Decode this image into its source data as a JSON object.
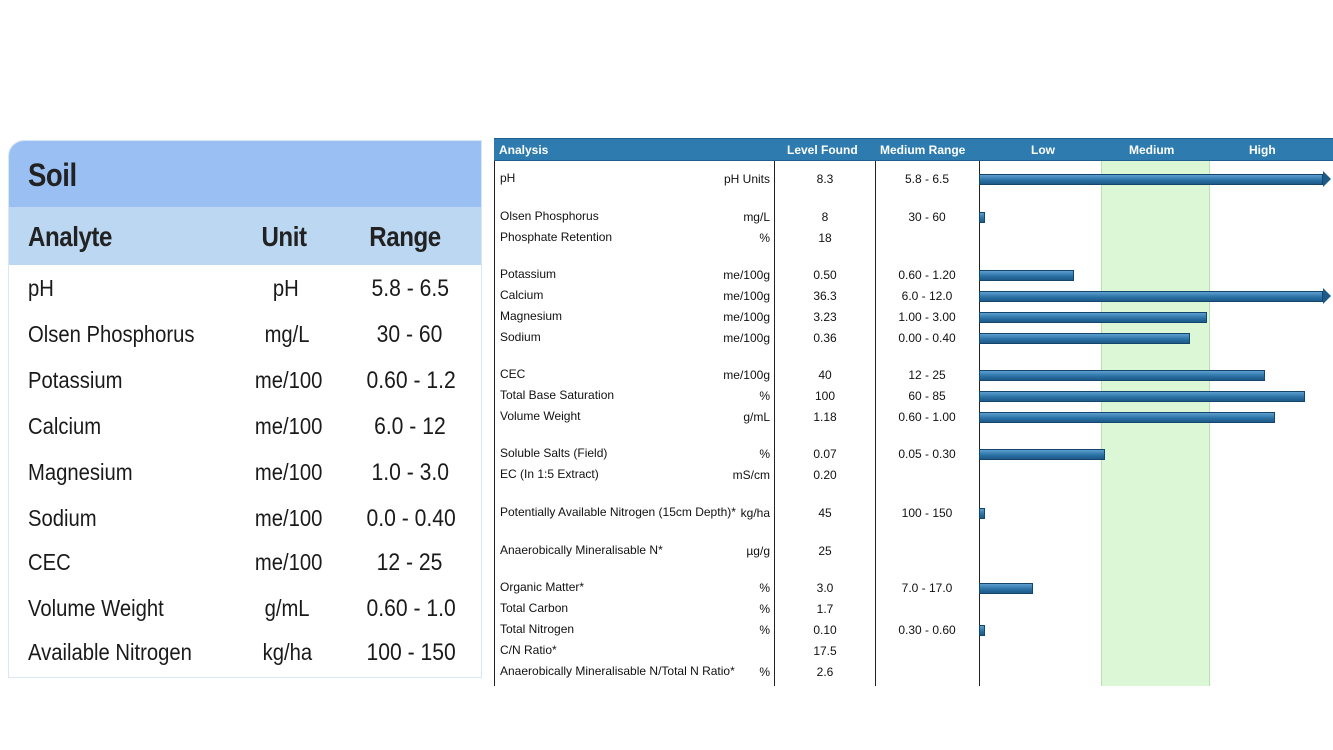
{
  "left_table": {
    "title": "Soil",
    "headers": {
      "analyte": "Analyte",
      "unit": "Unit",
      "range": "Range"
    },
    "rows": [
      {
        "analyte": "pH",
        "unit": "pH",
        "range": "5.8 - 6.5"
      },
      {
        "analyte": "Olsen Phosphorus",
        "unit": "mg/L",
        "range": "30 - 60"
      },
      {
        "analyte": "Potassium",
        "unit": "me/100",
        "range": "0.60 - 1.2"
      },
      {
        "analyte": "Calcium",
        "unit": "me/100",
        "range": "6.0 - 12"
      },
      {
        "analyte": "Magnesium",
        "unit": "me/100",
        "range": "1.0 - 3.0"
      },
      {
        "analyte": "Sodium",
        "unit": "me/100",
        "range": "0.0 - 0.40"
      },
      {
        "analyte": "CEC",
        "unit": "me/100",
        "range": "12 - 25"
      },
      {
        "analyte": "Volume Weight",
        "unit": "g/mL",
        "range": "0.60 - 1.0"
      },
      {
        "analyte": "Available Nitrogen",
        "unit": "kg/ha",
        "range": "100 - 150"
      }
    ]
  },
  "report": {
    "headers": {
      "analysis": "Analysis",
      "level_found": "Level Found",
      "medium_range": "Medium Range",
      "low": "Low",
      "medium": "Medium",
      "high": "High"
    },
    "colors": {
      "header_bg": "#2e7bb0",
      "medium_band": "#dcf7d6",
      "bar": "#2a6fa3"
    },
    "rows": [
      {
        "analyte": "pH",
        "unit": "pH Units",
        "level": "8.3",
        "medium_range": "5.8 - 6.5",
        "bar_fraction": 1.0,
        "overflow": true
      },
      {
        "analyte": "Olsen Phosphorus",
        "unit": "mg/L",
        "level": "8",
        "medium_range": "30 - 60",
        "bar_fraction": 0.01
      },
      {
        "analyte": "Phosphate Retention",
        "unit": "%",
        "level": "18",
        "medium_range": ""
      },
      {
        "analyte": "Potassium",
        "unit": "me/100g",
        "level": "0.50",
        "medium_range": "0.60 - 1.20",
        "bar_fraction": 0.28
      },
      {
        "analyte": "Calcium",
        "unit": "me/100g",
        "level": "36.3",
        "medium_range": "6.0 - 12.0",
        "bar_fraction": 1.0,
        "overflow": true
      },
      {
        "analyte": "Magnesium",
        "unit": "me/100g",
        "level": "3.23",
        "medium_range": "1.00 - 3.00",
        "bar_fraction": 0.67
      },
      {
        "analyte": "Sodium",
        "unit": "me/100g",
        "level": "0.36",
        "medium_range": "0.00 - 0.40",
        "bar_fraction": 0.62
      },
      {
        "analyte": "CEC",
        "unit": "me/100g",
        "level": "40",
        "medium_range": "12 - 25",
        "bar_fraction": 0.84
      },
      {
        "analyte": "Total Base Saturation",
        "unit": "%",
        "level": "100",
        "medium_range": "60 - 85",
        "bar_fraction": 0.96
      },
      {
        "analyte": "Volume Weight",
        "unit": "g/mL",
        "level": "1.18",
        "medium_range": "0.60 - 1.00",
        "bar_fraction": 0.87
      },
      {
        "analyte": "Soluble Salts (Field)",
        "unit": "%",
        "level": "0.07",
        "medium_range": "0.05 - 0.30",
        "bar_fraction": 0.37
      },
      {
        "analyte": "EC (In 1:5 Extract)",
        "unit": "mS/cm",
        "level": "0.20",
        "medium_range": ""
      },
      {
        "analyte": "Potentially Available Nitrogen (15cm Depth)*",
        "unit": "kg/ha",
        "level": "45",
        "medium_range": "100 - 150",
        "bar_fraction": 0.01
      },
      {
        "analyte": "Anaerobically Mineralisable N*",
        "unit": "µg/g",
        "level": "25",
        "medium_range": ""
      },
      {
        "analyte": "Organic Matter*",
        "unit": "%",
        "level": "3.0",
        "medium_range": "7.0 - 17.0",
        "bar_fraction": 0.16
      },
      {
        "analyte": "Total Carbon",
        "unit": "%",
        "level": "1.7",
        "medium_range": ""
      },
      {
        "analyte": "Total Nitrogen",
        "unit": "%",
        "level": "0.10",
        "medium_range": "0.30 - 0.60",
        "bar_fraction": 0.01
      },
      {
        "analyte": "C/N Ratio*",
        "unit": "",
        "level": "17.5",
        "medium_range": ""
      },
      {
        "analyte": "Anaerobically Mineralisable N/Total N Ratio*",
        "unit": "%",
        "level": "2.6",
        "medium_range": ""
      }
    ]
  }
}
